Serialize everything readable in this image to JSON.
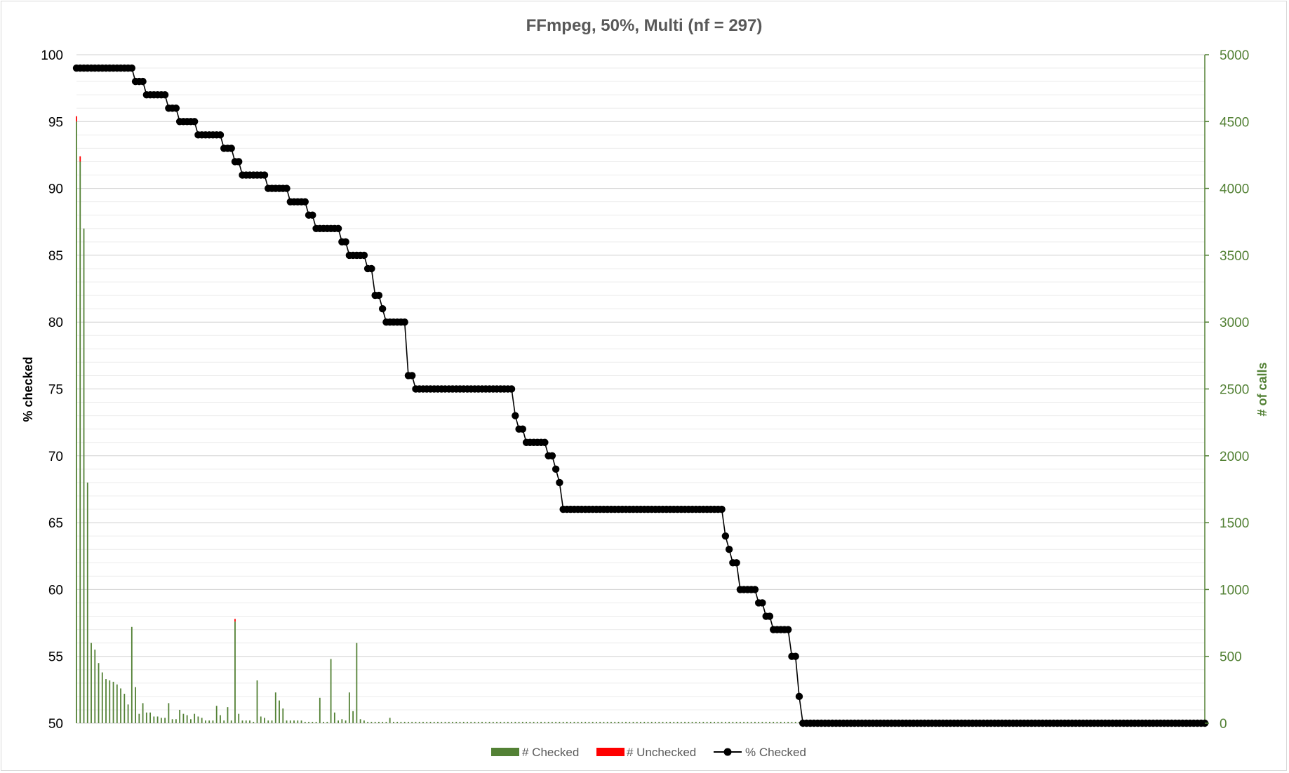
{
  "chart_data": {
    "type": "bar",
    "title": "FFmpeg, 50%, Multi (nf = 297)",
    "ylabel_left": "% checked",
    "ylabel_right": "# of calls",
    "ylim_left": [
      50,
      100
    ],
    "ylim_right": [
      0,
      5000
    ],
    "yticks_left": [
      "100",
      "95",
      "90",
      "85",
      "80",
      "75",
      "70",
      "65",
      "60",
      "55",
      "50"
    ],
    "yticks_right": [
      "5000",
      "4500",
      "4000",
      "3500",
      "3000",
      "2500",
      "2000",
      "1500",
      "1000",
      "500",
      "0"
    ],
    "grid": "horizontal",
    "legend_position": "bottom",
    "n_functions": 297,
    "colors": {
      "checked": "#538135",
      "unchecked": "#ff0000",
      "line": "#000000",
      "grid": "#d9d9d9",
      "right_axis": "#538135"
    },
    "series": [
      {
        "name": "# Checked",
        "type": "bar",
        "axis": "right",
        "values": [
          4500,
          4200,
          3700,
          1800,
          600,
          550,
          450,
          380,
          330,
          320,
          310,
          290,
          260,
          220,
          140,
          720,
          270,
          70,
          150,
          80,
          80,
          50,
          50,
          40,
          40,
          150,
          30,
          30,
          100,
          70,
          60,
          30,
          70,
          50,
          40,
          20,
          20,
          20,
          130,
          60,
          20,
          120,
          20,
          760,
          70,
          20,
          20,
          20,
          10,
          320,
          50,
          40,
          20,
          20,
          230,
          170,
          110,
          20,
          20,
          20,
          20,
          20,
          10,
          10,
          10,
          10,
          190,
          10,
          10,
          480,
          80,
          20,
          30,
          20,
          230,
          90,
          600,
          30,
          20,
          10,
          10,
          10,
          10,
          10,
          10,
          40,
          10,
          10,
          10,
          10,
          10,
          10,
          10,
          10,
          10,
          10,
          10,
          10,
          10,
          10,
          10,
          10,
          10,
          10,
          10,
          10,
          10,
          10,
          10,
          10,
          10,
          10,
          10,
          10,
          10,
          10,
          10,
          10,
          10,
          10,
          10,
          10,
          10,
          10,
          10,
          10,
          10,
          10,
          10,
          10,
          10,
          10,
          10,
          10,
          10,
          10,
          10,
          10,
          10,
          10,
          10,
          10,
          10,
          10,
          10,
          10,
          10,
          10,
          10,
          10,
          10,
          10,
          10,
          10,
          10,
          10,
          10,
          10,
          10,
          10,
          10,
          10,
          10,
          10,
          10,
          10,
          10,
          10,
          10,
          10,
          10,
          10,
          10,
          10,
          10,
          10,
          10,
          10,
          10,
          10,
          10,
          10,
          10,
          10,
          10,
          10,
          10,
          10,
          10,
          10,
          10,
          10,
          10,
          10,
          10,
          10,
          10,
          10,
          10,
          10,
          10,
          10,
          10,
          10,
          10,
          10,
          10,
          10,
          10,
          10,
          10,
          10,
          10,
          10,
          10,
          10,
          10,
          10,
          10,
          10,
          10,
          10,
          10,
          10,
          10,
          10,
          10,
          10,
          10,
          10,
          10,
          10,
          10,
          10,
          10,
          10,
          10,
          10,
          10,
          10,
          10,
          10,
          10,
          10,
          10,
          10,
          10,
          10,
          10,
          10,
          10,
          10,
          10,
          10,
          10,
          10,
          10,
          10,
          10,
          10,
          10,
          10,
          10,
          10,
          10,
          10,
          10,
          10,
          10,
          10,
          10,
          10,
          10,
          10,
          10,
          10,
          10,
          10,
          10,
          10,
          10,
          10,
          10,
          10,
          10,
          10,
          10,
          10,
          10,
          10,
          10,
          10,
          10,
          10,
          10,
          10,
          10,
          10,
          10
        ]
      },
      {
        "name": "# Unchecked",
        "type": "bar",
        "axis": "right",
        "values": [
          40,
          40,
          0,
          0,
          0,
          0,
          0,
          0,
          0,
          0,
          0,
          0,
          0,
          0,
          0,
          0,
          0,
          0,
          0,
          0,
          0,
          0,
          0,
          0,
          0,
          0,
          0,
          0,
          0,
          0,
          0,
          0,
          0,
          0,
          0,
          0,
          0,
          0,
          0,
          0,
          0,
          0,
          0,
          20,
          0,
          0,
          0,
          0,
          0,
          0,
          0,
          0,
          0,
          0,
          0,
          0,
          0,
          0,
          0,
          0,
          0,
          0,
          0,
          0,
          0,
          0,
          0,
          0,
          0,
          0,
          0,
          0,
          0,
          0,
          0,
          0,
          0,
          0,
          0,
          0,
          0,
          0,
          0,
          0,
          0,
          0,
          0,
          0,
          0,
          0,
          0,
          0,
          0,
          0,
          0,
          0,
          0,
          0,
          0,
          0,
          0,
          0,
          0,
          0,
          0,
          0,
          0,
          0,
          0,
          0,
          0,
          0,
          0,
          0,
          0,
          0,
          0,
          0,
          0,
          0,
          0,
          0,
          0,
          0,
          0,
          0,
          0,
          0,
          0,
          0,
          0,
          0,
          0,
          0,
          0,
          0,
          0,
          0,
          0,
          0,
          0,
          0,
          0,
          0,
          0,
          0,
          0,
          0,
          0,
          0,
          0,
          0,
          0,
          0,
          0,
          0,
          0,
          0,
          0,
          0,
          0,
          0,
          0,
          0,
          0,
          0,
          0,
          0,
          0,
          0,
          0,
          0,
          0,
          0,
          0,
          0,
          0,
          0,
          0,
          0,
          0,
          0,
          0,
          0,
          0,
          0,
          0,
          0,
          0,
          0,
          0,
          0,
          0,
          0,
          0,
          0,
          0,
          0,
          0,
          0,
          0,
          0,
          0,
          0,
          0,
          0,
          0,
          0,
          0,
          0,
          0,
          0,
          0,
          0,
          0,
          0,
          0,
          0,
          0,
          0,
          0,
          0,
          0,
          0,
          0,
          0,
          0,
          0,
          0,
          0,
          0,
          0,
          0,
          0,
          0,
          0,
          0,
          0,
          0,
          0,
          0,
          0,
          0,
          0,
          0,
          0,
          0,
          0,
          0,
          0,
          0,
          0,
          0,
          0,
          0,
          0,
          0,
          0,
          0,
          0,
          0,
          0,
          0,
          0,
          0,
          0,
          0,
          0,
          0,
          0,
          0,
          0,
          0,
          0,
          0,
          0,
          0,
          0,
          0,
          0,
          0,
          0,
          0,
          0,
          0,
          0,
          0,
          0,
          0
        ]
      },
      {
        "name": "% Checked",
        "type": "line",
        "axis": "left",
        "marker": "circle",
        "values": [
          99,
          99,
          99,
          99,
          99,
          99,
          99,
          99,
          99,
          99,
          99,
          99,
          99,
          99,
          99,
          99,
          98,
          98,
          98,
          97,
          97,
          97,
          97,
          97,
          97,
          96,
          96,
          96,
          95,
          95,
          95,
          95,
          95,
          94,
          94,
          94,
          94,
          94,
          94,
          94,
          93,
          93,
          93,
          92,
          92,
          91,
          91,
          91,
          91,
          91,
          91,
          91,
          90,
          90,
          90,
          90,
          90,
          90,
          89,
          89,
          89,
          89,
          89,
          88,
          88,
          87,
          87,
          87,
          87,
          87,
          87,
          87,
          86,
          86,
          85,
          85,
          85,
          85,
          85,
          84,
          84,
          82,
          82,
          81,
          80,
          80,
          80,
          80,
          80,
          80,
          76,
          76,
          75,
          75,
          75,
          75,
          75,
          75,
          75,
          75,
          75,
          75,
          75,
          75,
          75,
          75,
          75,
          75,
          75,
          75,
          75,
          75,
          75,
          75,
          75,
          75,
          75,
          75,
          75,
          73,
          72,
          72,
          71,
          71,
          71,
          71,
          71,
          71,
          70,
          70,
          69,
          68,
          66,
          66,
          66,
          66,
          66,
          66,
          66,
          66,
          66,
          66,
          66,
          66,
          66,
          66,
          66,
          66,
          66,
          66,
          66,
          66,
          66,
          66,
          66,
          66,
          66,
          66,
          66,
          66,
          66,
          66,
          66,
          66,
          66,
          66,
          66,
          66,
          66,
          66,
          66,
          66,
          66,
          66,
          66,
          66,
          64,
          63,
          62,
          62,
          60,
          60,
          60,
          60,
          60,
          59,
          59,
          58,
          58,
          57,
          57,
          57,
          57,
          57,
          55,
          55,
          52,
          50,
          50,
          50,
          50,
          50,
          50,
          50,
          50,
          50,
          50,
          50,
          50,
          50,
          50,
          50,
          50,
          50,
          50,
          50,
          50,
          50,
          50,
          50,
          50,
          50,
          50,
          50,
          50,
          50,
          50,
          50,
          50,
          50,
          50,
          50,
          50,
          50,
          50,
          50,
          50,
          50,
          50,
          50,
          50,
          50,
          50,
          50,
          50,
          50,
          50,
          50,
          50,
          50,
          50,
          50,
          50,
          50,
          50,
          50,
          50,
          50,
          50,
          50,
          50,
          50,
          50,
          50,
          50,
          50,
          50,
          50,
          50,
          50,
          50,
          50,
          50,
          50,
          50,
          50,
          50,
          50,
          50,
          50,
          50,
          50,
          50,
          50,
          50,
          50,
          50,
          50,
          50,
          50,
          50,
          50,
          50,
          50,
          50,
          50,
          50,
          50,
          50,
          50,
          50,
          50,
          50,
          50,
          50,
          50,
          50
        ]
      }
    ],
    "legend": {
      "checked_label": "# Checked",
      "unchecked_label": "# Unchecked",
      "line_label": "% Checked"
    }
  }
}
